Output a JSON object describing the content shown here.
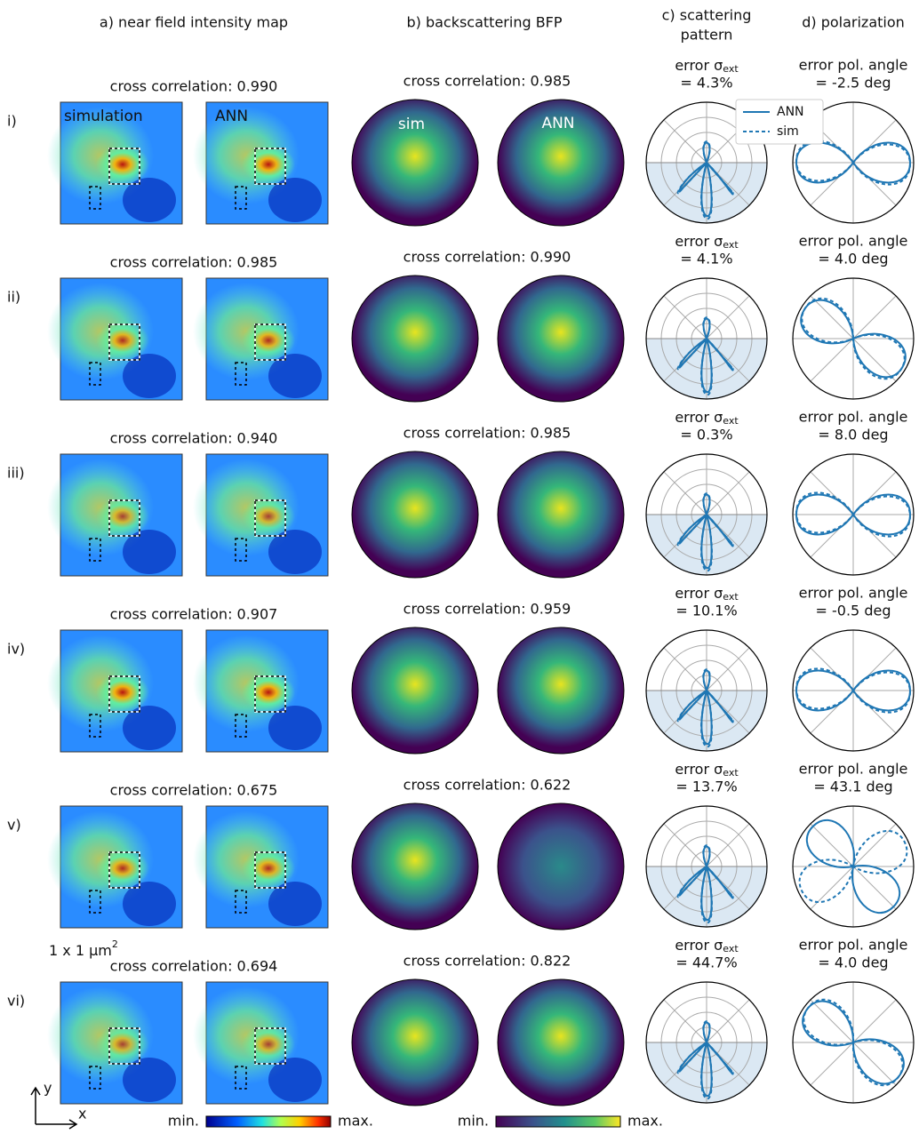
{
  "columns": [
    "a) near field intensity map",
    "b) backscattering BFP",
    "c) scattering",
    "pattern",
    "d) polarization"
  ],
  "panel_labels": {
    "simulation": "simulation",
    "ann": "ANN",
    "sim": "sim",
    "ann_bfp": "ANN"
  },
  "legend": [
    "ANN",
    "sim"
  ],
  "error_ext_label": "error σ",
  "error_ext_sub": "ext",
  "error_pol_label": "error pol. angle",
  "rows": [
    {
      "label": "i)",
      "nf_corr": "cross correlation: 0.990",
      "bfp_corr": "cross correlation: 0.985",
      "error_ext": "= 4.3%",
      "error_pol": "= -2.5 deg"
    },
    {
      "label": "ii)",
      "nf_corr": "cross correlation: 0.985",
      "bfp_corr": "cross correlation: 0.990",
      "error_ext": "= 4.1%",
      "error_pol": "= 4.0 deg"
    },
    {
      "label": "iii)",
      "nf_corr": "cross correlation: 0.940",
      "bfp_corr": "cross correlation: 0.985",
      "error_ext": "= 0.3%",
      "error_pol": "= 8.0 deg"
    },
    {
      "label": "iv)",
      "nf_corr": "cross correlation: 0.907",
      "bfp_corr": "cross correlation: 0.959",
      "error_ext": "= 10.1%",
      "error_pol": "= -0.5 deg"
    },
    {
      "label": "v)",
      "nf_corr": "cross correlation: 0.675",
      "bfp_corr": "cross correlation: 0.622",
      "error_ext": "= 13.7%",
      "error_pol": "= 43.1 deg"
    },
    {
      "label": "vi)",
      "nf_corr": "cross correlation: 0.694",
      "bfp_corr": "cross correlation: 0.822",
      "error_ext": "= 44.7%",
      "error_pol": "= 4.0 deg"
    }
  ],
  "scale": {
    "text": "1 x 1 µm",
    "sup": "2"
  },
  "colorbars": {
    "min": "min.",
    "max": "max."
  },
  "axes": {
    "x": "x",
    "y": "y"
  }
}
